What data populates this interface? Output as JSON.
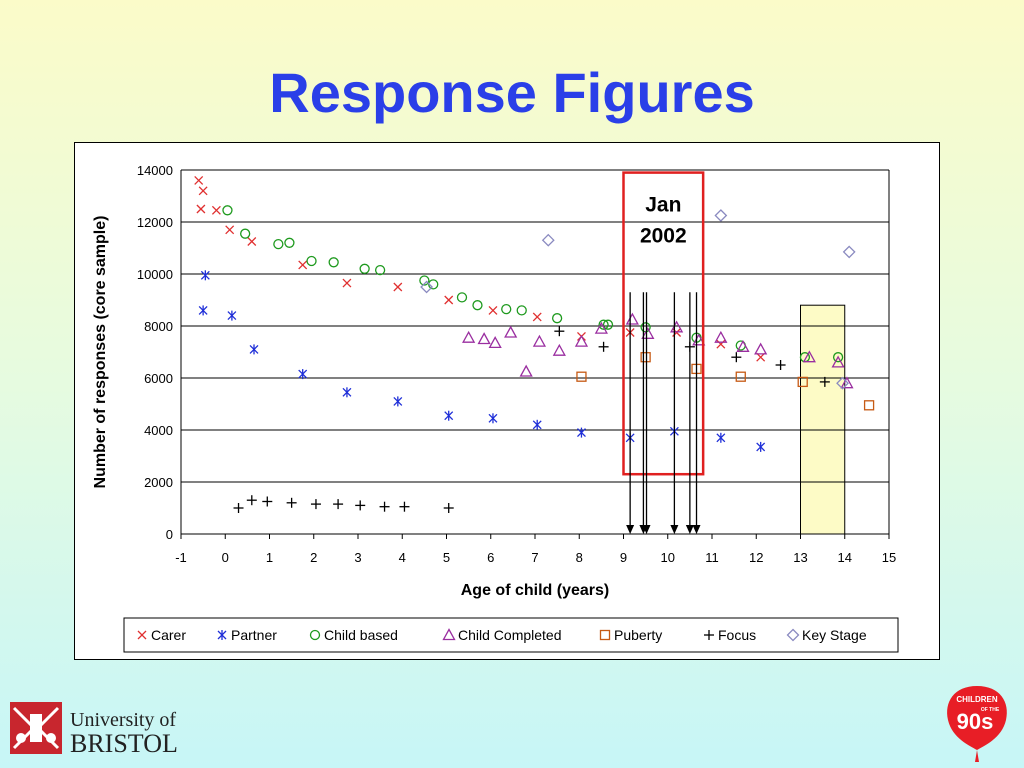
{
  "slide": {
    "title": "Response Figures"
  },
  "logos": {
    "university": {
      "line1": "University of",
      "line2": "BRISTOL"
    },
    "children_of_the_90s": {
      "line1": "CHILDREN",
      "line2": "OF THE",
      "line3": "90s"
    }
  },
  "chart_data": {
    "type": "scatter",
    "xlabel": "Age of child (years)",
    "ylabel": "Number of responses (core sample)",
    "xlim": [
      -1,
      15
    ],
    "ylim": [
      0,
      14000
    ],
    "xticks": [
      -1,
      0,
      1,
      2,
      3,
      4,
      5,
      6,
      7,
      8,
      9,
      10,
      11,
      12,
      13,
      14,
      15
    ],
    "yticks": [
      0,
      2000,
      4000,
      6000,
      8000,
      10000,
      12000,
      14000
    ],
    "grid": "horizontal",
    "legend_position": "bottom",
    "series": [
      {
        "name": "Carer",
        "marker": "x",
        "color": "#e03030",
        "points": [
          [
            -0.6,
            13600
          ],
          [
            -0.5,
            13200
          ],
          [
            -0.55,
            12500
          ],
          [
            -0.2,
            12450
          ],
          [
            0.1,
            11700
          ],
          [
            0.6,
            11250
          ],
          [
            1.75,
            10350
          ],
          [
            2.75,
            9650
          ],
          [
            3.9,
            9500
          ],
          [
            5.05,
            9000
          ],
          [
            6.05,
            8600
          ],
          [
            7.05,
            8350
          ],
          [
            8.05,
            7600
          ],
          [
            9.15,
            7750
          ],
          [
            10.2,
            7750
          ],
          [
            11.2,
            7300
          ],
          [
            12.1,
            6800
          ]
        ]
      },
      {
        "name": "Partner",
        "marker": "*",
        "color": "#1f2fd8",
        "points": [
          [
            -0.5,
            8600
          ],
          [
            -0.45,
            9950
          ],
          [
            0.15,
            8400
          ],
          [
            0.65,
            7100
          ],
          [
            1.75,
            6150
          ],
          [
            2.75,
            5450
          ],
          [
            3.9,
            5100
          ],
          [
            5.05,
            4550
          ],
          [
            6.05,
            4450
          ],
          [
            7.05,
            4200
          ],
          [
            8.05,
            3900
          ],
          [
            9.15,
            3700
          ],
          [
            10.15,
            3950
          ],
          [
            11.2,
            3700
          ],
          [
            12.1,
            3350
          ]
        ]
      },
      {
        "name": "Child based",
        "marker": "o",
        "color": "#1e9a1e",
        "points": [
          [
            0.05,
            12450
          ],
          [
            0.45,
            11550
          ],
          [
            1.2,
            11150
          ],
          [
            1.45,
            11200
          ],
          [
            1.95,
            10500
          ],
          [
            2.45,
            10450
          ],
          [
            3.15,
            10200
          ],
          [
            3.5,
            10150
          ],
          [
            4.5,
            9750
          ],
          [
            4.7,
            9600
          ],
          [
            5.35,
            9100
          ],
          [
            5.7,
            8800
          ],
          [
            6.35,
            8650
          ],
          [
            6.7,
            8600
          ],
          [
            7.5,
            8300
          ],
          [
            8.55,
            8050
          ],
          [
            8.65,
            8050
          ],
          [
            9.5,
            7950
          ],
          [
            10.65,
            7550
          ],
          [
            11.65,
            7250
          ],
          [
            13.1,
            6800
          ],
          [
            13.85,
            6800
          ]
        ]
      },
      {
        "name": "Child Completed",
        "marker": "triangle",
        "color": "#9a2ea0",
        "points": [
          [
            5.5,
            7550
          ],
          [
            5.85,
            7500
          ],
          [
            6.1,
            7350
          ],
          [
            6.45,
            7750
          ],
          [
            6.8,
            6250
          ],
          [
            7.1,
            7400
          ],
          [
            7.55,
            7050
          ],
          [
            8.05,
            7400
          ],
          [
            8.5,
            7900
          ],
          [
            9.2,
            8250
          ],
          [
            9.55,
            7700
          ],
          [
            10.2,
            7950
          ],
          [
            10.7,
            7450
          ],
          [
            11.2,
            7550
          ],
          [
            11.7,
            7200
          ],
          [
            12.1,
            7100
          ],
          [
            13.2,
            6800
          ],
          [
            13.85,
            6600
          ],
          [
            14.05,
            5800
          ]
        ]
      },
      {
        "name": "Puberty",
        "marker": "square",
        "color": "#c65a14",
        "points": [
          [
            8.05,
            6050
          ],
          [
            9.5,
            6800
          ],
          [
            10.65,
            6350
          ],
          [
            11.65,
            6050
          ],
          [
            13.05,
            5850
          ],
          [
            14.55,
            4950
          ]
        ]
      },
      {
        "name": "Focus",
        "marker": "+",
        "color": "#000000",
        "points": [
          [
            0.3,
            1000
          ],
          [
            0.6,
            1300
          ],
          [
            0.95,
            1250
          ],
          [
            1.5,
            1200
          ],
          [
            2.05,
            1150
          ],
          [
            2.55,
            1150
          ],
          [
            3.05,
            1100
          ],
          [
            3.6,
            1050
          ],
          [
            4.05,
            1050
          ],
          [
            5.05,
            1000
          ],
          [
            7.55,
            7800
          ],
          [
            8.55,
            7200
          ],
          [
            10.5,
            7200
          ],
          [
            11.55,
            6800
          ],
          [
            12.55,
            6500
          ],
          [
            13.55,
            5850
          ]
        ]
      },
      {
        "name": "Key Stage",
        "marker": "diamond",
        "color": "#8a8ac0",
        "points": [
          [
            4.55,
            9500
          ],
          [
            7.3,
            11300
          ],
          [
            11.2,
            12250
          ],
          [
            14.1,
            10850
          ],
          [
            13.95,
            5800
          ]
        ]
      }
    ],
    "annotations": [
      {
        "text_lines": [
          "Jan",
          "2002"
        ],
        "box_x": [
          9.0,
          10.8
        ],
        "box_y": [
          2300,
          13900
        ],
        "box_color": "#e02020",
        "arrows_x": [
          9.15,
          9.45,
          9.52,
          10.15,
          10.5,
          10.65
        ],
        "arrow_top": 9300,
        "arrow_bottom": 0
      },
      {
        "box_x": [
          13.0,
          14.0
        ],
        "box_y": [
          0,
          8800
        ],
        "fill": "#fdfbc6"
      }
    ]
  }
}
